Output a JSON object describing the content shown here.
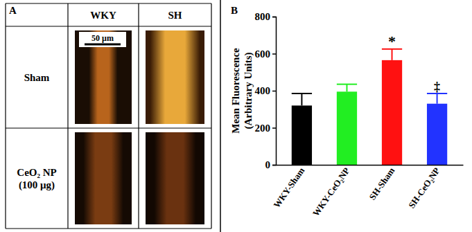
{
  "panel_a": {
    "label": "A",
    "columns": [
      "WKY",
      "SH"
    ],
    "rows": [
      [
        "Sham"
      ],
      [
        "CeO₂ NP",
        "(100 μg)"
      ]
    ],
    "scale_bar": "50 μm"
  },
  "chart_data": {
    "type": "bar",
    "title": "B",
    "ylabel": [
      "Mean Fluorescence",
      "(Arbitrary Units)"
    ],
    "categories": [
      "WKY-Sham",
      "WKY-CeO₂NP",
      "SH-Sham",
      "SH-CeO₂NP"
    ],
    "values": [
      320,
      395,
      565,
      330
    ],
    "errors": [
      65,
      40,
      60,
      55
    ],
    "colors": [
      "#000000",
      "#22ee22",
      "#ff1111",
      "#2233ff"
    ],
    "ylim": [
      0,
      800
    ],
    "yticks": [
      0,
      200,
      400,
      600,
      800
    ],
    "grid": false,
    "annotations": [
      {
        "text": "*",
        "category": "SH-Sham"
      },
      {
        "text": "‡",
        "category": "SH-CeO₂NP"
      }
    ]
  }
}
